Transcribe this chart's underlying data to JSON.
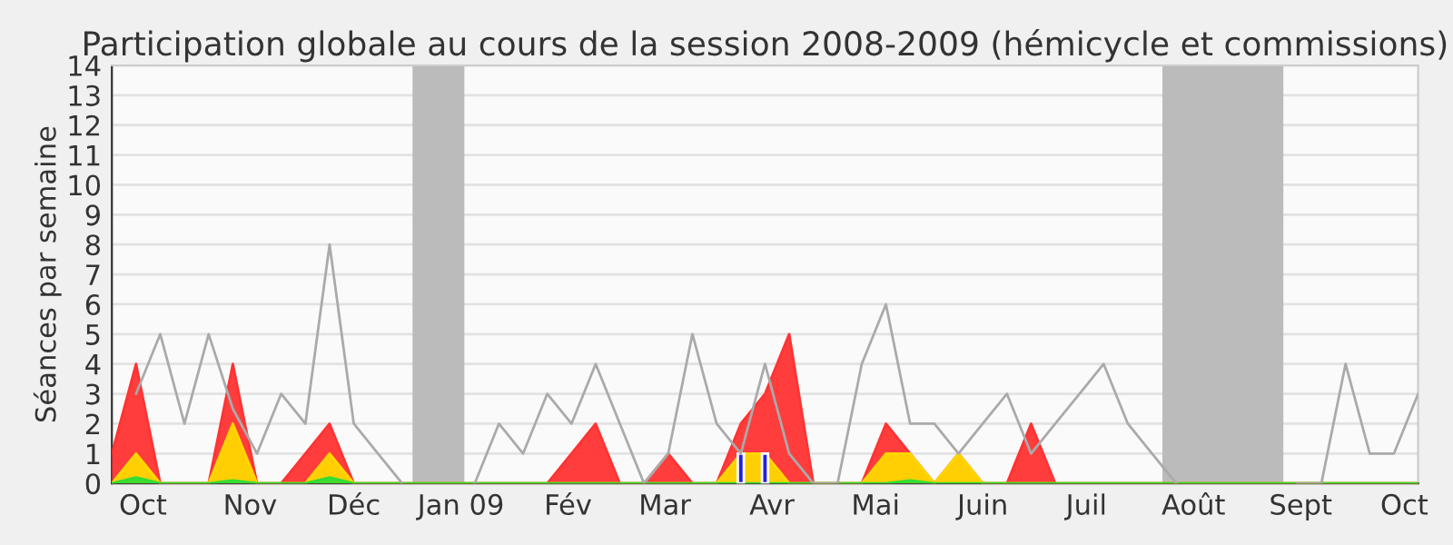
{
  "chart_data": {
    "type": "area",
    "title": "Participation globale au cours de la session 2008-2009 (hémicycle et commissions)",
    "ylabel": "Séances par semaine",
    "x": [
      "2008-09-22",
      "2008-09-29",
      "2008-10-06",
      "2008-10-13",
      "2008-10-20",
      "2008-10-27",
      "2008-11-03",
      "2008-11-10",
      "2008-11-17",
      "2008-11-24",
      "2008-12-01",
      "2008-12-08",
      "2008-12-15",
      "2008-12-22",
      "2008-12-29",
      "2009-01-05",
      "2009-01-12",
      "2009-01-19",
      "2009-01-26",
      "2009-02-02",
      "2009-02-09",
      "2009-02-16",
      "2009-02-23",
      "2009-03-02",
      "2009-03-09",
      "2009-03-16",
      "2009-03-23",
      "2009-03-30",
      "2009-04-06",
      "2009-04-13",
      "2009-04-20",
      "2009-04-27",
      "2009-05-04",
      "2009-05-11",
      "2009-05-18",
      "2009-05-25",
      "2009-06-01",
      "2009-06-08",
      "2009-06-15",
      "2009-06-22",
      "2009-06-29",
      "2009-07-06",
      "2009-07-13",
      "2009-07-20",
      "2009-07-27",
      "2009-08-03",
      "2009-08-10",
      "2009-08-17",
      "2009-08-24",
      "2009-08-31",
      "2009-09-07",
      "2009-09-14",
      "2009-09-21",
      "2009-09-28",
      "2009-10-05"
    ],
    "series": [
      {
        "color": "#ff3333",
        "values": [
          1,
          4,
          0,
          0,
          0,
          4,
          0,
          0,
          1,
          2,
          0,
          0,
          0,
          0,
          0,
          0,
          0,
          0,
          0,
          1,
          2,
          0,
          0,
          1,
          0,
          0,
          2,
          3,
          5,
          0,
          0,
          0,
          2,
          1,
          0,
          1,
          0,
          0,
          2,
          0,
          0,
          0,
          0,
          0,
          0,
          0,
          0,
          0,
          0,
          0,
          0,
          0,
          0,
          0,
          0
        ]
      },
      {
        "color": "#ffd700",
        "values": [
          0,
          1,
          0,
          0,
          0,
          2,
          0,
          0,
          0,
          1,
          0,
          0,
          0,
          0,
          0,
          0,
          0,
          0,
          0,
          0,
          0,
          0,
          0,
          0,
          0,
          0,
          1,
          1,
          0,
          0,
          0,
          0,
          1,
          1,
          0,
          1,
          0,
          0,
          0,
          0,
          0,
          0,
          0,
          0,
          0,
          0,
          0,
          0,
          0,
          0,
          0,
          0,
          0,
          0,
          0
        ]
      },
      {
        "color": "#33dd33",
        "values": [
          0,
          0.2,
          0,
          0,
          0,
          0.1,
          0,
          0,
          0,
          0.2,
          0,
          0,
          0,
          0,
          0,
          0,
          0,
          0,
          0,
          0,
          0,
          0,
          0,
          0,
          0,
          0,
          0,
          0,
          0,
          0,
          0,
          0,
          0,
          0.1,
          0,
          0,
          0,
          0,
          0,
          0,
          0,
          0,
          0,
          0,
          0,
          0,
          0,
          0,
          0,
          0,
          0,
          0,
          0,
          0,
          0
        ]
      },
      {
        "type": "bar",
        "color": "#2222dd",
        "values": [
          null,
          null,
          null,
          null,
          null,
          null,
          null,
          null,
          null,
          null,
          null,
          null,
          null,
          null,
          null,
          null,
          null,
          null,
          null,
          null,
          null,
          null,
          null,
          null,
          null,
          null,
          1,
          1,
          null,
          null,
          null,
          null,
          null,
          null,
          null,
          null,
          null,
          null,
          null,
          null,
          null,
          null,
          null,
          null,
          null,
          null,
          null,
          null,
          null,
          null,
          null,
          null,
          null,
          null,
          null
        ]
      },
      {
        "type": "line",
        "color": "#aaaaaa",
        "values": [
          null,
          3,
          5,
          2,
          5,
          2.5,
          1,
          3,
          2,
          8,
          2,
          1,
          0,
          null,
          null,
          0,
          2,
          1,
          3,
          2,
          4,
          2,
          0,
          1,
          5,
          2,
          1,
          4,
          1,
          0,
          0,
          4,
          6,
          2,
          2,
          1,
          2,
          3,
          1,
          2,
          3,
          4,
          2,
          1,
          0,
          null,
          null,
          null,
          null,
          0,
          0,
          4,
          1,
          1,
          3
        ]
      }
    ],
    "bands": [
      {
        "axis": "x",
        "from": "2008-12-18",
        "to": "2009-01-02",
        "color": "#bbbbbb"
      },
      {
        "axis": "x",
        "from": "2009-07-23",
        "to": "2009-08-27",
        "color": "#bbbbbb"
      }
    ],
    "xlim": [
      "2008-09-22",
      "2009-10-05"
    ],
    "xticks": [
      {
        "value": "2008-10-01",
        "label": "Oct"
      },
      {
        "value": "2008-11-01",
        "label": "Nov"
      },
      {
        "value": "2008-12-01",
        "label": "Déc"
      },
      {
        "value": "2009-01-01",
        "label": "Jan 09"
      },
      {
        "value": "2009-02-01",
        "label": "Fév"
      },
      {
        "value": "2009-03-01",
        "label": "Mar"
      },
      {
        "value": "2009-04-01",
        "label": "Avr"
      },
      {
        "value": "2009-05-01",
        "label": "Mai"
      },
      {
        "value": "2009-06-01",
        "label": "Juin"
      },
      {
        "value": "2009-07-01",
        "label": "Juil"
      },
      {
        "value": "2009-08-01",
        "label": "Août"
      },
      {
        "value": "2009-09-01",
        "label": "Sept"
      },
      {
        "value": "2009-10-01",
        "label": "Oct"
      }
    ],
    "ylim": [
      0,
      14
    ],
    "yticks": [
      0,
      1,
      2,
      3,
      4,
      5,
      6,
      7,
      8,
      9,
      10,
      11,
      12,
      13,
      14
    ],
    "grid": "y"
  }
}
